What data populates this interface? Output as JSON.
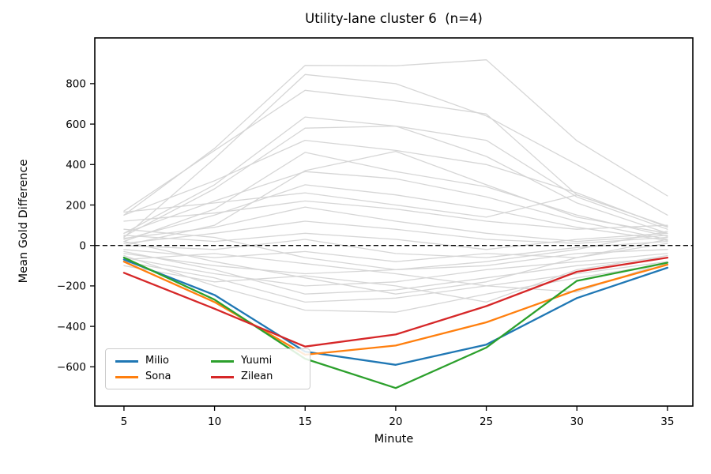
{
  "window": {
    "title": "Utility-lane cluster 6  (n=4)"
  },
  "chart_data": {
    "type": "line",
    "title": "Utility-lane cluster 6  (n=4)",
    "xlabel": "Minute",
    "ylabel": "Mean Gold Difference",
    "x": [
      5,
      10,
      15,
      20,
      25,
      30,
      35
    ],
    "xticks": [
      5,
      10,
      15,
      20,
      25,
      30,
      35
    ],
    "yticks": [
      800,
      600,
      400,
      200,
      0,
      -200,
      -400,
      -600
    ],
    "xlim": [
      3.39,
      36.4
    ],
    "ylim": [
      -794,
      1026
    ],
    "grid": false,
    "zero_line": {
      "y": 0,
      "style": "dashed",
      "color": "#000000"
    },
    "legend_position": "lower left",
    "legend_order": [
      "Milio",
      "Sona",
      "Yuumi",
      "Zilean"
    ],
    "series": [
      {
        "name": "Milio",
        "color": "#1f77b4",
        "values": [
          -70,
          -245,
          -525,
          -590,
          -490,
          -260,
          -110
        ]
      },
      {
        "name": "Sona",
        "color": "#ff7f0e",
        "values": [
          -80,
          -280,
          -540,
          -495,
          -380,
          -220,
          -95
        ]
      },
      {
        "name": "Yuumi",
        "color": "#2ca02c",
        "values": [
          -60,
          -268,
          -560,
          -705,
          -505,
          -175,
          -85
        ]
      },
      {
        "name": "Zilean",
        "color": "#d62728",
        "values": [
          -135,
          -313,
          -500,
          -440,
          -300,
          -130,
          -60
        ]
      }
    ],
    "background_color": "#d6d6d6",
    "background_series": [
      {
        "values": [
          150,
          480,
          890,
          888,
          918,
          518,
          245
        ]
      },
      {
        "values": [
          40,
          430,
          845,
          800,
          640,
          400,
          150
        ]
      },
      {
        "values": [
          170,
          470,
          767,
          715,
          650,
          250,
          95
        ]
      },
      {
        "values": [
          60,
          300,
          635,
          590,
          520,
          240,
          80
        ]
      },
      {
        "values": [
          45,
          280,
          580,
          590,
          440,
          210,
          60
        ]
      },
      {
        "values": [
          150,
          320,
          520,
          470,
          400,
          260,
          90
        ]
      },
      {
        "values": [
          0,
          100,
          370,
          465,
          300,
          140,
          60
        ]
      },
      {
        "values": [
          20,
          180,
          460,
          365,
          290,
          150,
          45
        ]
      },
      {
        "values": [
          60,
          220,
          365,
          330,
          240,
          120,
          30
        ]
      },
      {
        "values": [
          30,
          150,
          300,
          250,
          180,
          90,
          25
        ]
      },
      {
        "values": [
          165,
          210,
          260,
          200,
          140,
          250,
          95
        ]
      },
      {
        "values": [
          120,
          160,
          220,
          180,
          120,
          80,
          100
        ]
      },
      {
        "values": [
          35,
          90,
          190,
          120,
          60,
          20,
          50
        ]
      },
      {
        "values": [
          10,
          60,
          120,
          80,
          30,
          10,
          40
        ]
      },
      {
        "values": [
          50,
          20,
          60,
          30,
          -20,
          30,
          60
        ]
      },
      {
        "values": [
          0,
          -20,
          30,
          -40,
          -60,
          -10,
          20
        ]
      },
      {
        "values": [
          -20,
          -60,
          -30,
          -80,
          -40,
          -60,
          10
        ]
      },
      {
        "values": [
          80,
          40,
          -60,
          -120,
          -80,
          -20,
          70
        ]
      },
      {
        "values": [
          -40,
          -100,
          -140,
          -120,
          -100,
          -40,
          -20
        ]
      },
      {
        "values": [
          20,
          -80,
          -160,
          -240,
          -180,
          -60,
          30
        ]
      },
      {
        "values": [
          -60,
          -140,
          -200,
          -180,
          -120,
          -80,
          -40
        ]
      },
      {
        "values": [
          -30,
          -120,
          -240,
          -220,
          -160,
          -100,
          -60
        ]
      },
      {
        "values": [
          -80,
          -160,
          -280,
          -260,
          -200,
          -140,
          -80
        ]
      },
      {
        "values": [
          -50,
          -200,
          -320,
          -330,
          -240,
          -160,
          -90
        ]
      },
      {
        "values": [
          -100,
          -180,
          -150,
          -200,
          -280,
          -120,
          -50
        ]
      },
      {
        "values": [
          -70,
          -40,
          -90,
          -140,
          -200,
          -230,
          -80
        ]
      }
    ]
  }
}
